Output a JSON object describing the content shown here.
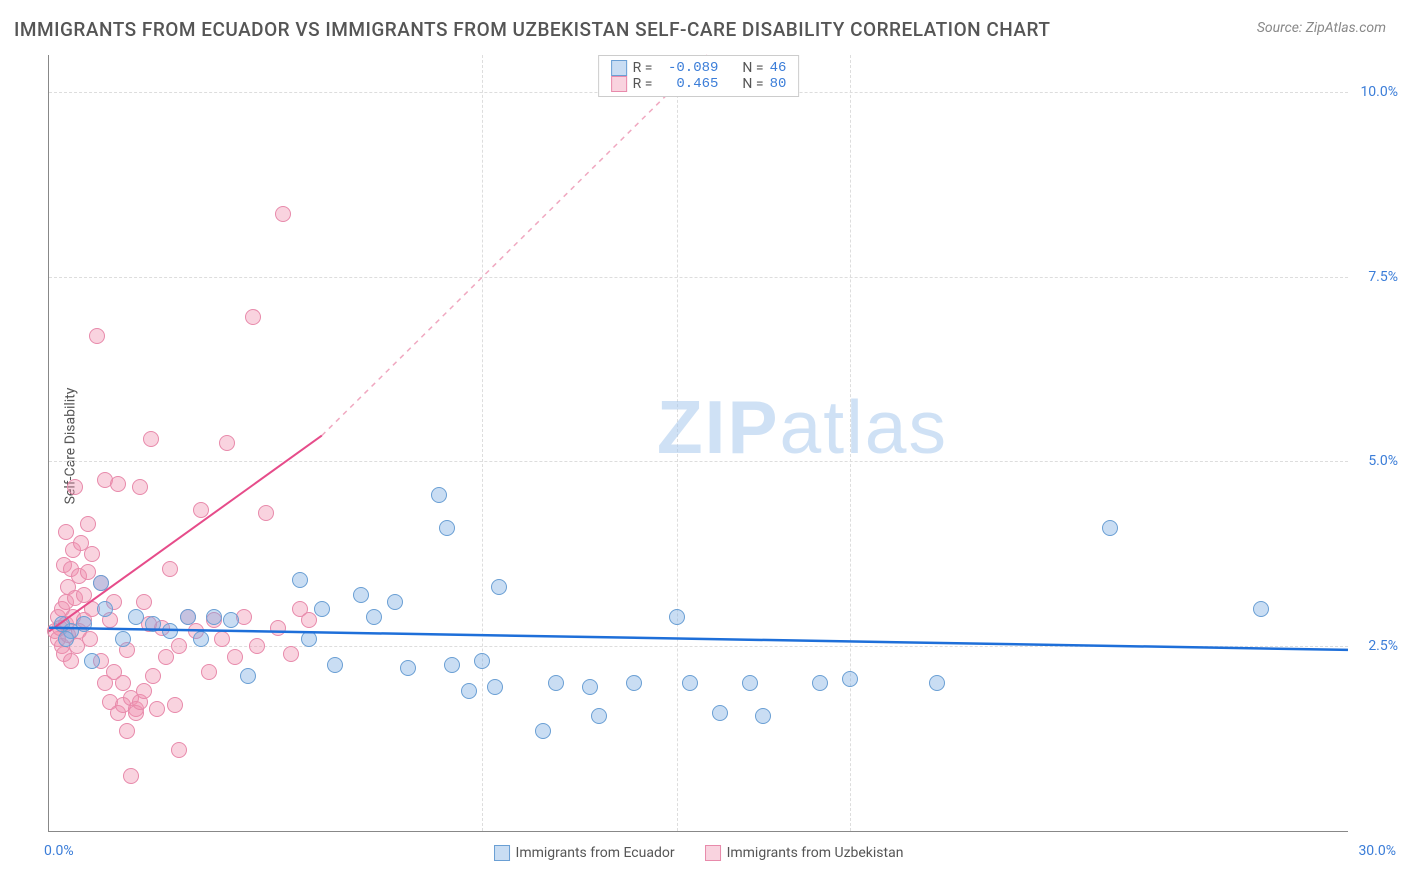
{
  "title": "IMMIGRANTS FROM ECUADOR VS IMMIGRANTS FROM UZBEKISTAN SELF-CARE DISABILITY CORRELATION CHART",
  "source_prefix": "Source: ",
  "source": "ZipAtlas.com",
  "y_axis_label": "Self-Care Disability",
  "watermark_a": "ZIP",
  "watermark_b": "atlas",
  "chart": {
    "type": "scatter",
    "xlim": [
      0,
      30
    ],
    "ylim": [
      0,
      10.5
    ],
    "x_ticks": [
      0,
      30
    ],
    "x_tick_labels": [
      "0.0%",
      "30.0%"
    ],
    "y_ticks": [
      2.5,
      5.0,
      7.5,
      10.0
    ],
    "y_tick_labels": [
      "2.5%",
      "5.0%",
      "7.5%",
      "10.0%"
    ],
    "grid_color": "#dddddd",
    "background_color": "#ffffff",
    "axis_color": "#888888",
    "tick_label_color": "#3b7dd8",
    "marker_radius": 8,
    "marker_opacity": 0.55,
    "series": [
      {
        "id": "ecuador",
        "label": "Immigrants from Ecuador",
        "color_fill": "rgba(120,170,225,0.4)",
        "color_stroke": "#6a9fd4",
        "R": "-0.089",
        "N": "46",
        "trend": {
          "x1": 0,
          "y1": 2.75,
          "x2": 30,
          "y2": 2.45,
          "color": "#1e6fd9",
          "width": 2.5,
          "dash": "none"
        },
        "points": [
          [
            1.0,
            2.3
          ],
          [
            1.3,
            3.0
          ],
          [
            1.7,
            2.6
          ],
          [
            2.0,
            2.9
          ],
          [
            2.4,
            2.8
          ],
          [
            2.8,
            2.7
          ],
          [
            3.2,
            2.9
          ],
          [
            3.5,
            2.6
          ],
          [
            3.8,
            2.9
          ],
          [
            4.2,
            2.85
          ],
          [
            4.6,
            2.1
          ],
          [
            5.8,
            3.4
          ],
          [
            6.0,
            2.6
          ],
          [
            6.3,
            3.0
          ],
          [
            6.6,
            2.25
          ],
          [
            7.2,
            3.2
          ],
          [
            7.5,
            2.9
          ],
          [
            8.0,
            3.1
          ],
          [
            8.3,
            2.2
          ],
          [
            9.0,
            4.55
          ],
          [
            9.2,
            4.1
          ],
          [
            9.3,
            2.25
          ],
          [
            9.7,
            1.9
          ],
          [
            10.0,
            2.3
          ],
          [
            10.3,
            1.95
          ],
          [
            10.4,
            3.3
          ],
          [
            11.4,
            1.35
          ],
          [
            11.7,
            2.0
          ],
          [
            12.5,
            1.95
          ],
          [
            12.7,
            1.55
          ],
          [
            13.5,
            2.0
          ],
          [
            14.5,
            2.9
          ],
          [
            14.8,
            2.0
          ],
          [
            15.5,
            1.6
          ],
          [
            16.2,
            2.0
          ],
          [
            16.5,
            1.55
          ],
          [
            17.8,
            2.0
          ],
          [
            18.5,
            2.05
          ],
          [
            20.5,
            2.0
          ],
          [
            24.5,
            4.1
          ],
          [
            28.0,
            3.0
          ],
          [
            1.2,
            3.35
          ],
          [
            0.8,
            2.8
          ],
          [
            0.5,
            2.7
          ],
          [
            0.4,
            2.6
          ],
          [
            0.3,
            2.8
          ]
        ]
      },
      {
        "id": "uzbekistan",
        "label": "Immigrants from Uzbekistan",
        "color_fill": "rgba(240,145,175,0.4)",
        "color_stroke": "#e88aab",
        "R": "0.465",
        "N": "80",
        "trend_solid": {
          "x1": 0,
          "y1": 2.7,
          "x2": 6.3,
          "y2": 5.35,
          "color": "#e64c8a",
          "width": 2,
          "dash": "none"
        },
        "trend_dash": {
          "x1": 6.3,
          "y1": 5.35,
          "x2": 15.2,
          "y2": 10.5,
          "color": "#f0a8c0",
          "width": 1.5,
          "dash": "5,5"
        },
        "points": [
          [
            0.15,
            2.7
          ],
          [
            0.2,
            2.6
          ],
          [
            0.2,
            2.9
          ],
          [
            0.25,
            2.75
          ],
          [
            0.3,
            3.0
          ],
          [
            0.3,
            2.5
          ],
          [
            0.35,
            3.6
          ],
          [
            0.35,
            2.4
          ],
          [
            0.4,
            3.1
          ],
          [
            0.4,
            2.8
          ],
          [
            0.4,
            4.05
          ],
          [
            0.45,
            3.3
          ],
          [
            0.45,
            2.65
          ],
          [
            0.5,
            3.55
          ],
          [
            0.5,
            2.3
          ],
          [
            0.55,
            3.8
          ],
          [
            0.55,
            2.9
          ],
          [
            0.6,
            3.15
          ],
          [
            0.6,
            4.65
          ],
          [
            0.65,
            2.5
          ],
          [
            0.7,
            3.45
          ],
          [
            0.7,
            2.7
          ],
          [
            0.75,
            3.9
          ],
          [
            0.8,
            2.85
          ],
          [
            0.8,
            3.2
          ],
          [
            0.9,
            3.5
          ],
          [
            0.9,
            4.15
          ],
          [
            0.95,
            2.6
          ],
          [
            1.0,
            3.0
          ],
          [
            1.0,
            3.75
          ],
          [
            1.1,
            6.7
          ],
          [
            1.2,
            2.3
          ],
          [
            1.2,
            3.35
          ],
          [
            1.3,
            4.75
          ],
          [
            1.3,
            2.0
          ],
          [
            1.4,
            2.85
          ],
          [
            1.4,
            1.75
          ],
          [
            1.5,
            2.15
          ],
          [
            1.5,
            3.1
          ],
          [
            1.6,
            1.6
          ],
          [
            1.6,
            4.7
          ],
          [
            1.7,
            2.0
          ],
          [
            1.7,
            1.7
          ],
          [
            1.8,
            2.45
          ],
          [
            1.8,
            1.35
          ],
          [
            1.9,
            1.8
          ],
          [
            1.9,
            0.75
          ],
          [
            2.0,
            1.65
          ],
          [
            2.0,
            1.6
          ],
          [
            2.1,
            1.75
          ],
          [
            2.1,
            4.65
          ],
          [
            2.2,
            3.1
          ],
          [
            2.2,
            1.9
          ],
          [
            2.3,
            2.8
          ],
          [
            2.35,
            5.3
          ],
          [
            2.4,
            2.1
          ],
          [
            2.5,
            1.65
          ],
          [
            2.6,
            2.75
          ],
          [
            2.7,
            2.35
          ],
          [
            2.8,
            3.55
          ],
          [
            2.9,
            1.7
          ],
          [
            3.0,
            2.5
          ],
          [
            3.0,
            1.1
          ],
          [
            3.2,
            2.9
          ],
          [
            3.4,
            2.7
          ],
          [
            3.5,
            4.35
          ],
          [
            3.7,
            2.15
          ],
          [
            3.8,
            2.85
          ],
          [
            4.0,
            2.6
          ],
          [
            4.1,
            5.25
          ],
          [
            4.3,
            2.35
          ],
          [
            4.5,
            2.9
          ],
          [
            4.7,
            6.95
          ],
          [
            4.8,
            2.5
          ],
          [
            5.0,
            4.3
          ],
          [
            5.3,
            2.75
          ],
          [
            5.4,
            8.35
          ],
          [
            5.6,
            2.4
          ],
          [
            5.8,
            3.0
          ],
          [
            6.0,
            2.85
          ]
        ]
      }
    ]
  },
  "legend_top": {
    "r_label": "R =",
    "n_label": "N ="
  }
}
